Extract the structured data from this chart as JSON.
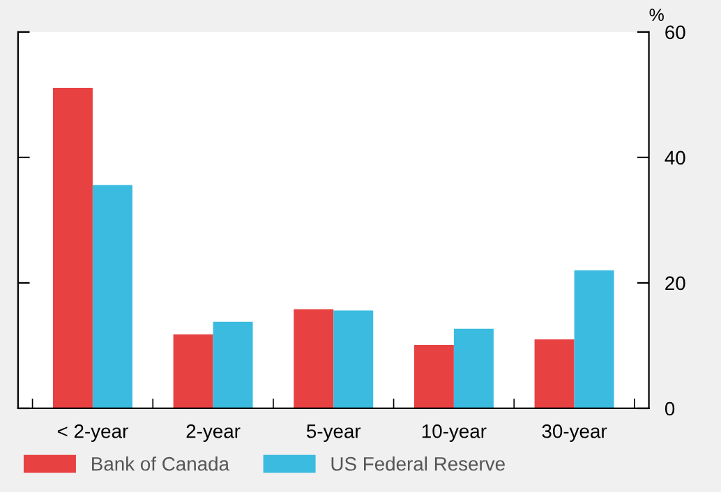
{
  "chart_data": {
    "type": "bar",
    "ylabel": "%",
    "categories": [
      "< 2-year",
      "2-year",
      "5-year",
      "10-year",
      "30-year"
    ],
    "series": [
      {
        "name": "Bank of Canada",
        "color": "#e84142",
        "values": [
          51.1,
          11.8,
          15.8,
          10.1,
          11.0
        ]
      },
      {
        "name": "US Federal Reserve",
        "color": "#3bbbdf",
        "values": [
          35.6,
          13.8,
          15.6,
          12.7,
          22.0
        ]
      }
    ],
    "ylim": [
      0,
      60
    ],
    "yticks": [
      0,
      20,
      40,
      60
    ],
    "grid": false,
    "legend": "bottom left"
  }
}
